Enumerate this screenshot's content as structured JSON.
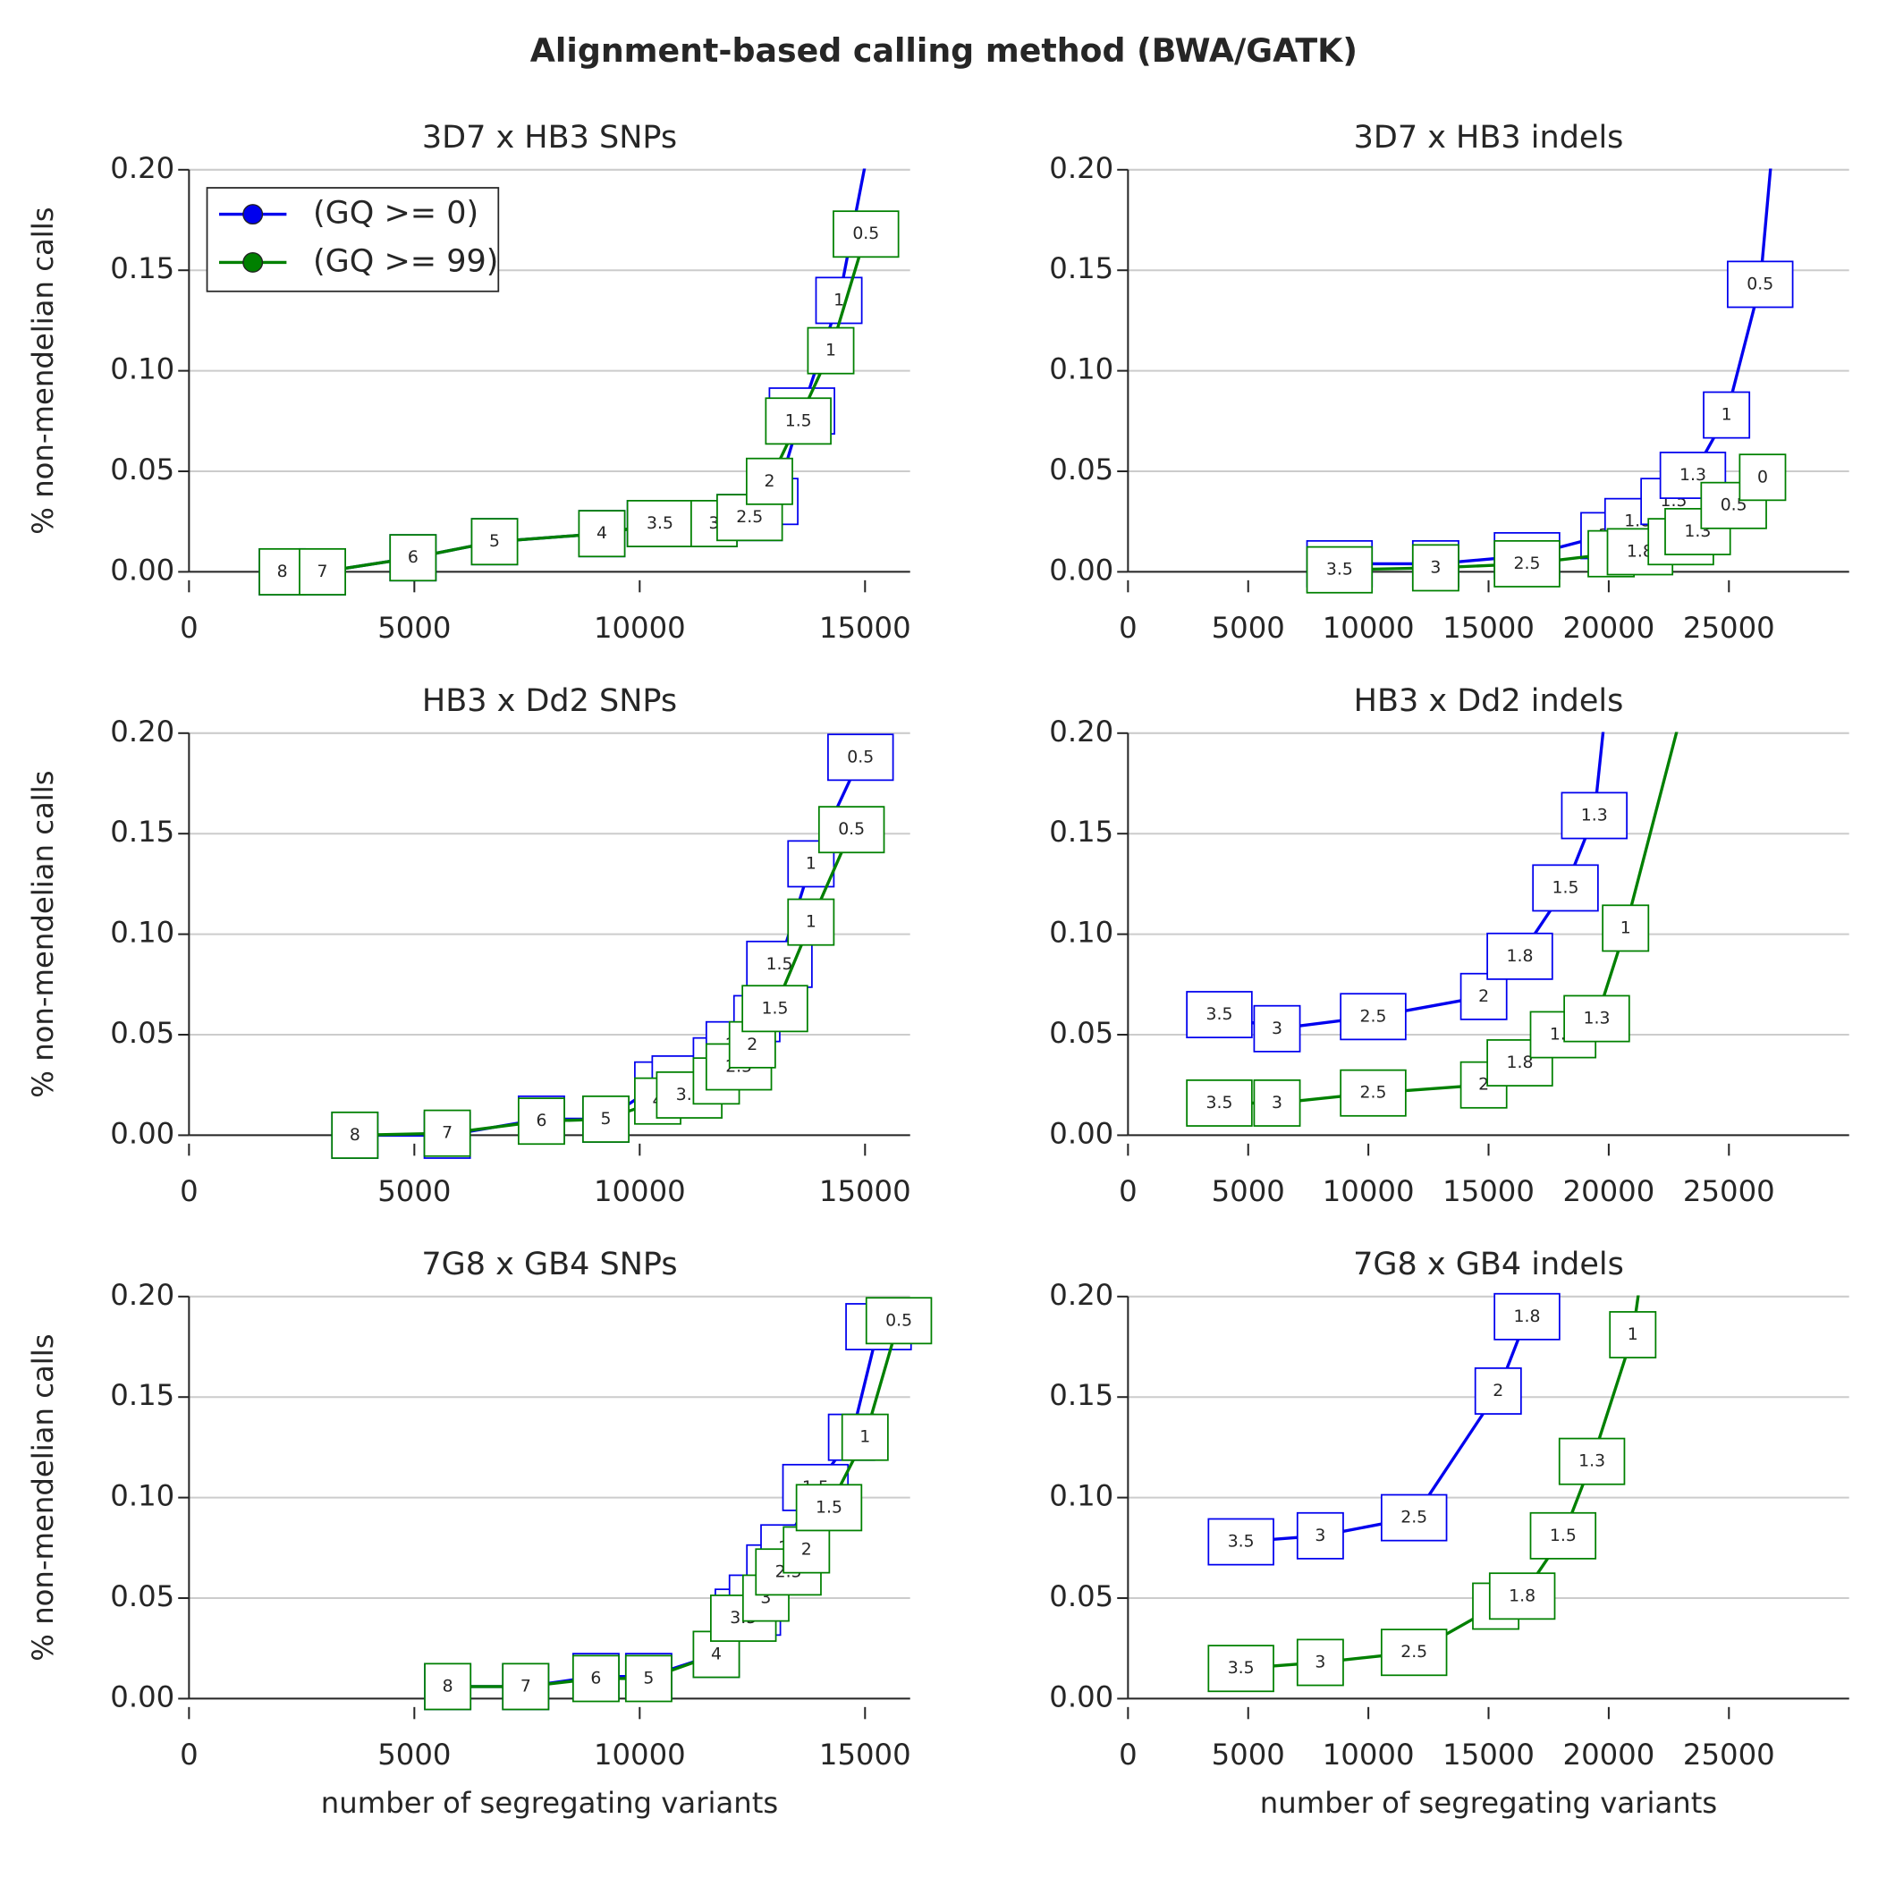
{
  "title": "Alignment-based calling method (BWA/GATK)",
  "chart_data": [
    {
      "type": "line",
      "title": "3D7 x HB3 SNPs",
      "y_label": "% non-mendelian calls",
      "legend": "upper left",
      "xlim": [
        0,
        16000
      ],
      "xticks": [
        0,
        5000,
        10000,
        15000
      ],
      "ylim": [
        0,
        0.2
      ],
      "yticks": [
        {
          "value": 0,
          "label": "0.00"
        },
        {
          "value": 0.05,
          "label": "0.05"
        },
        {
          "value": 0.1,
          "label": "0.10"
        },
        {
          "value": 0.15,
          "label": "0.15"
        },
        {
          "value": 0.2,
          "label": "0.20"
        }
      ],
      "grid": true,
      "series": [
        {
          "name": "(GQ >= 0)",
          "color": "#0000ee",
          "x": [
            2070,
            2960,
            4970,
            6780,
            9160,
            10450,
            11650,
            12440,
            13000,
            13600,
            14420,
            15500
          ],
          "values": [
            0,
            0,
            0.007,
            0.015,
            0.019,
            0.024,
            0.024,
            0.027,
            0.035,
            0.08,
            0.135,
            0.26
          ],
          "labels": [
            "8",
            "7",
            "6",
            "5",
            "4",
            "3.5",
            "3",
            "2.5",
            "2",
            "1.5",
            "1",
            null
          ]
        },
        {
          "name": "(GQ >= 99)",
          "color": "#008000",
          "x": [
            2070,
            2960,
            4970,
            6780,
            9160,
            10450,
            11650,
            12440,
            12880,
            13520,
            14240,
            15020
          ],
          "values": [
            0,
            0,
            0.007,
            0.015,
            0.019,
            0.024,
            0.024,
            0.027,
            0.045,
            0.075,
            0.11,
            0.168
          ],
          "labels": [
            "8",
            "7",
            "6",
            "5",
            "4",
            "3.5",
            "3",
            "2.5",
            "2",
            "1.5",
            "1",
            "0.5"
          ]
        }
      ]
    },
    {
      "type": "line",
      "title": "3D7 x HB3 indels",
      "xlim": [
        0,
        30000
      ],
      "xticks": [
        0,
        5000,
        10000,
        15000,
        20000,
        25000
      ],
      "ylim": [
        0,
        0.2
      ],
      "yticks": [
        {
          "value": 0,
          "label": "0.00"
        },
        {
          "value": 0.05,
          "label": "0.05"
        },
        {
          "value": 0.1,
          "label": "0.10"
        },
        {
          "value": 0.15,
          "label": "0.15"
        },
        {
          "value": 0.2,
          "label": "0.20"
        }
      ],
      "grid": true,
      "series": [
        {
          "name": "(GQ >= 0)",
          "color": "#0000ee",
          "x": [
            8800,
            12800,
            16600,
            19800,
            21200,
            22700,
            23500,
            24900,
            26300,
            27100
          ],
          "values": [
            0.004,
            0.004,
            0.008,
            0.018,
            0.025,
            0.035,
            0.048,
            0.078,
            0.143,
            0.25
          ],
          "labels": [
            "3.5",
            "3",
            "2.5",
            "2",
            "1.8",
            "1.5",
            "1.3",
            "1",
            "0.5",
            null
          ]
        },
        {
          "name": "(GQ >= 99)",
          "color": "#008000",
          "x": [
            8800,
            12800,
            16600,
            20100,
            21300,
            23000,
            23700,
            25200,
            26400
          ],
          "values": [
            0.001,
            0.002,
            0.004,
            0.009,
            0.01,
            0.015,
            0.02,
            0.033,
            0.047
          ],
          "labels": [
            "3.5",
            "3",
            "2.5",
            "2",
            "1.8",
            "1.5",
            "1.3",
            "0.5",
            "0"
          ]
        }
      ]
    },
    {
      "type": "line",
      "title": "HB3 x Dd2 SNPs",
      "y_label": "% non-mendelian calls",
      "xlim": [
        0,
        16000
      ],
      "xticks": [
        0,
        5000,
        10000,
        15000
      ],
      "ylim": [
        0,
        0.2
      ],
      "yticks": [
        {
          "value": 0,
          "label": "0.00"
        },
        {
          "value": 0.05,
          "label": "0.05"
        },
        {
          "value": 0.1,
          "label": "0.10"
        },
        {
          "value": 0.15,
          "label": "0.15"
        },
        {
          "value": 0.2,
          "label": "0.20"
        }
      ],
      "grid": true,
      "series": [
        {
          "name": "(GQ >= 0)",
          "color": "#0000ee",
          "x": [
            3680,
            5730,
            7820,
            9250,
            10400,
            11000,
            11700,
            12200,
            12600,
            13100,
            13800,
            14900
          ],
          "values": [
            0,
            0,
            0.008,
            0.008,
            0.025,
            0.028,
            0.037,
            0.045,
            0.058,
            0.085,
            0.135,
            0.188
          ],
          "labels": [
            "8",
            "7",
            "6",
            "5",
            "4",
            "3.5",
            "3",
            "2.5",
            "2",
            "1.5",
            "1",
            "0.5"
          ]
        },
        {
          "name": "(GQ >= 99)",
          "color": "#008000",
          "x": [
            3680,
            5730,
            7820,
            9250,
            10400,
            11100,
            11700,
            12200,
            12500,
            13000,
            13800,
            14700
          ],
          "values": [
            0,
            0.001,
            0.007,
            0.008,
            0.017,
            0.02,
            0.027,
            0.034,
            0.045,
            0.063,
            0.106,
            0.152
          ],
          "labels": [
            "8",
            "7",
            "6",
            "5",
            "4",
            "3.5",
            "3",
            "2.5",
            "2",
            "1.5",
            "1",
            "0.5"
          ]
        }
      ]
    },
    {
      "type": "line",
      "title": "HB3 x Dd2 indels",
      "xlim": [
        0,
        30000
      ],
      "xticks": [
        0,
        5000,
        10000,
        15000,
        20000,
        25000
      ],
      "ylim": [
        0,
        0.2
      ],
      "yticks": [
        {
          "value": 0,
          "label": "0.00"
        },
        {
          "value": 0.05,
          "label": "0.05"
        },
        {
          "value": 0.1,
          "label": "0.10"
        },
        {
          "value": 0.15,
          "label": "0.15"
        },
        {
          "value": 0.2,
          "label": "0.20"
        }
      ],
      "grid": true,
      "series": [
        {
          "name": "(GQ >= 0)",
          "color": "#0000ee",
          "x": [
            3800,
            6200,
            10200,
            14800,
            16300,
            18200,
            19400,
            20200
          ],
          "values": [
            0.06,
            0.053,
            0.059,
            0.069,
            0.089,
            0.123,
            0.159,
            0.25
          ],
          "labels": [
            "3.5",
            "3",
            "2.5",
            "2",
            "1.8",
            "1.5",
            "1.3",
            null
          ]
        },
        {
          "name": "(GQ >= 99)",
          "color": "#008000",
          "x": [
            3800,
            6200,
            10200,
            14800,
            16300,
            18100,
            19500,
            20700,
            23900
          ],
          "values": [
            0.016,
            0.016,
            0.021,
            0.025,
            0.036,
            0.05,
            0.058,
            0.103,
            0.25
          ],
          "labels": [
            "3.5",
            "3",
            "2.5",
            "2",
            "1.8",
            "1.5",
            "1.3",
            "1",
            null
          ]
        }
      ]
    },
    {
      "type": "line",
      "title": "7G8 x GB4 SNPs",
      "y_label": "% non-mendelian calls",
      "x_label": "number of segregating variants",
      "xlim": [
        0,
        16000
      ],
      "xticks": [
        0,
        5000,
        10000,
        15000
      ],
      "ylim": [
        0,
        0.2
      ],
      "yticks": [
        {
          "value": 0,
          "label": "0.00"
        },
        {
          "value": 0.05,
          "label": "0.05"
        },
        {
          "value": 0.1,
          "label": "0.10"
        },
        {
          "value": 0.15,
          "label": "0.15"
        },
        {
          "value": 0.2,
          "label": "0.20"
        }
      ],
      "grid": true,
      "series": [
        {
          "name": "(GQ >= 0)",
          "color": "#0000ee",
          "x": [
            5740,
            7470,
            9030,
            10200,
            11700,
            12400,
            12500,
            13100,
            13200,
            13900,
            14700,
            15300
          ],
          "values": [
            0.006,
            0.006,
            0.011,
            0.011,
            0.022,
            0.043,
            0.05,
            0.065,
            0.075,
            0.105,
            0.13,
            0.185
          ],
          "labels": [
            "8",
            "7",
            "6",
            "5",
            "4",
            "3.5",
            "3",
            "2.5",
            "2",
            "1.5",
            "1",
            "0.5"
          ]
        },
        {
          "name": "(GQ >= 99)",
          "color": "#008000",
          "x": [
            5740,
            7470,
            9030,
            10200,
            11700,
            12300,
            12800,
            13300,
            13700,
            14200,
            15000,
            15750
          ],
          "values": [
            0.006,
            0.006,
            0.01,
            0.01,
            0.022,
            0.04,
            0.05,
            0.063,
            0.074,
            0.095,
            0.13,
            0.188
          ],
          "labels": [
            "8",
            "7",
            "6",
            "5",
            "4",
            "3.5",
            "3",
            "2.5",
            "2",
            "1.5",
            "1",
            "0.5"
          ]
        }
      ]
    },
    {
      "type": "line",
      "title": "7G8 x GB4 indels",
      "x_label": "number of segregating variants",
      "xlim": [
        0,
        30000
      ],
      "xticks": [
        0,
        5000,
        10000,
        15000,
        20000,
        25000
      ],
      "ylim": [
        0,
        0.2
      ],
      "yticks": [
        {
          "value": 0,
          "label": "0.00"
        },
        {
          "value": 0.05,
          "label": "0.05"
        },
        {
          "value": 0.1,
          "label": "0.10"
        },
        {
          "value": 0.15,
          "label": "0.15"
        },
        {
          "value": 0.2,
          "label": "0.20"
        }
      ],
      "grid": true,
      "series": [
        {
          "name": "(GQ >= 0)",
          "color": "#0000ee",
          "x": [
            4700,
            8000,
            11900,
            15400,
            16600,
            17300
          ],
          "values": [
            0.078,
            0.081,
            0.09,
            0.153,
            0.19,
            0.25
          ],
          "labels": [
            "3.5",
            "3",
            "2.5",
            "2",
            "1.8",
            null
          ]
        },
        {
          "name": "(GQ >= 99)",
          "color": "#008000",
          "x": [
            4700,
            8000,
            11900,
            15300,
            16400,
            18100,
            19300,
            21000,
            21800
          ],
          "values": [
            0.015,
            0.018,
            0.023,
            0.046,
            0.051,
            0.081,
            0.118,
            0.181,
            0.25
          ],
          "labels": [
            "3.5",
            "3",
            "2.5",
            "2",
            "1.8",
            "1.5",
            "1.3",
            "1",
            null
          ]
        }
      ]
    }
  ]
}
